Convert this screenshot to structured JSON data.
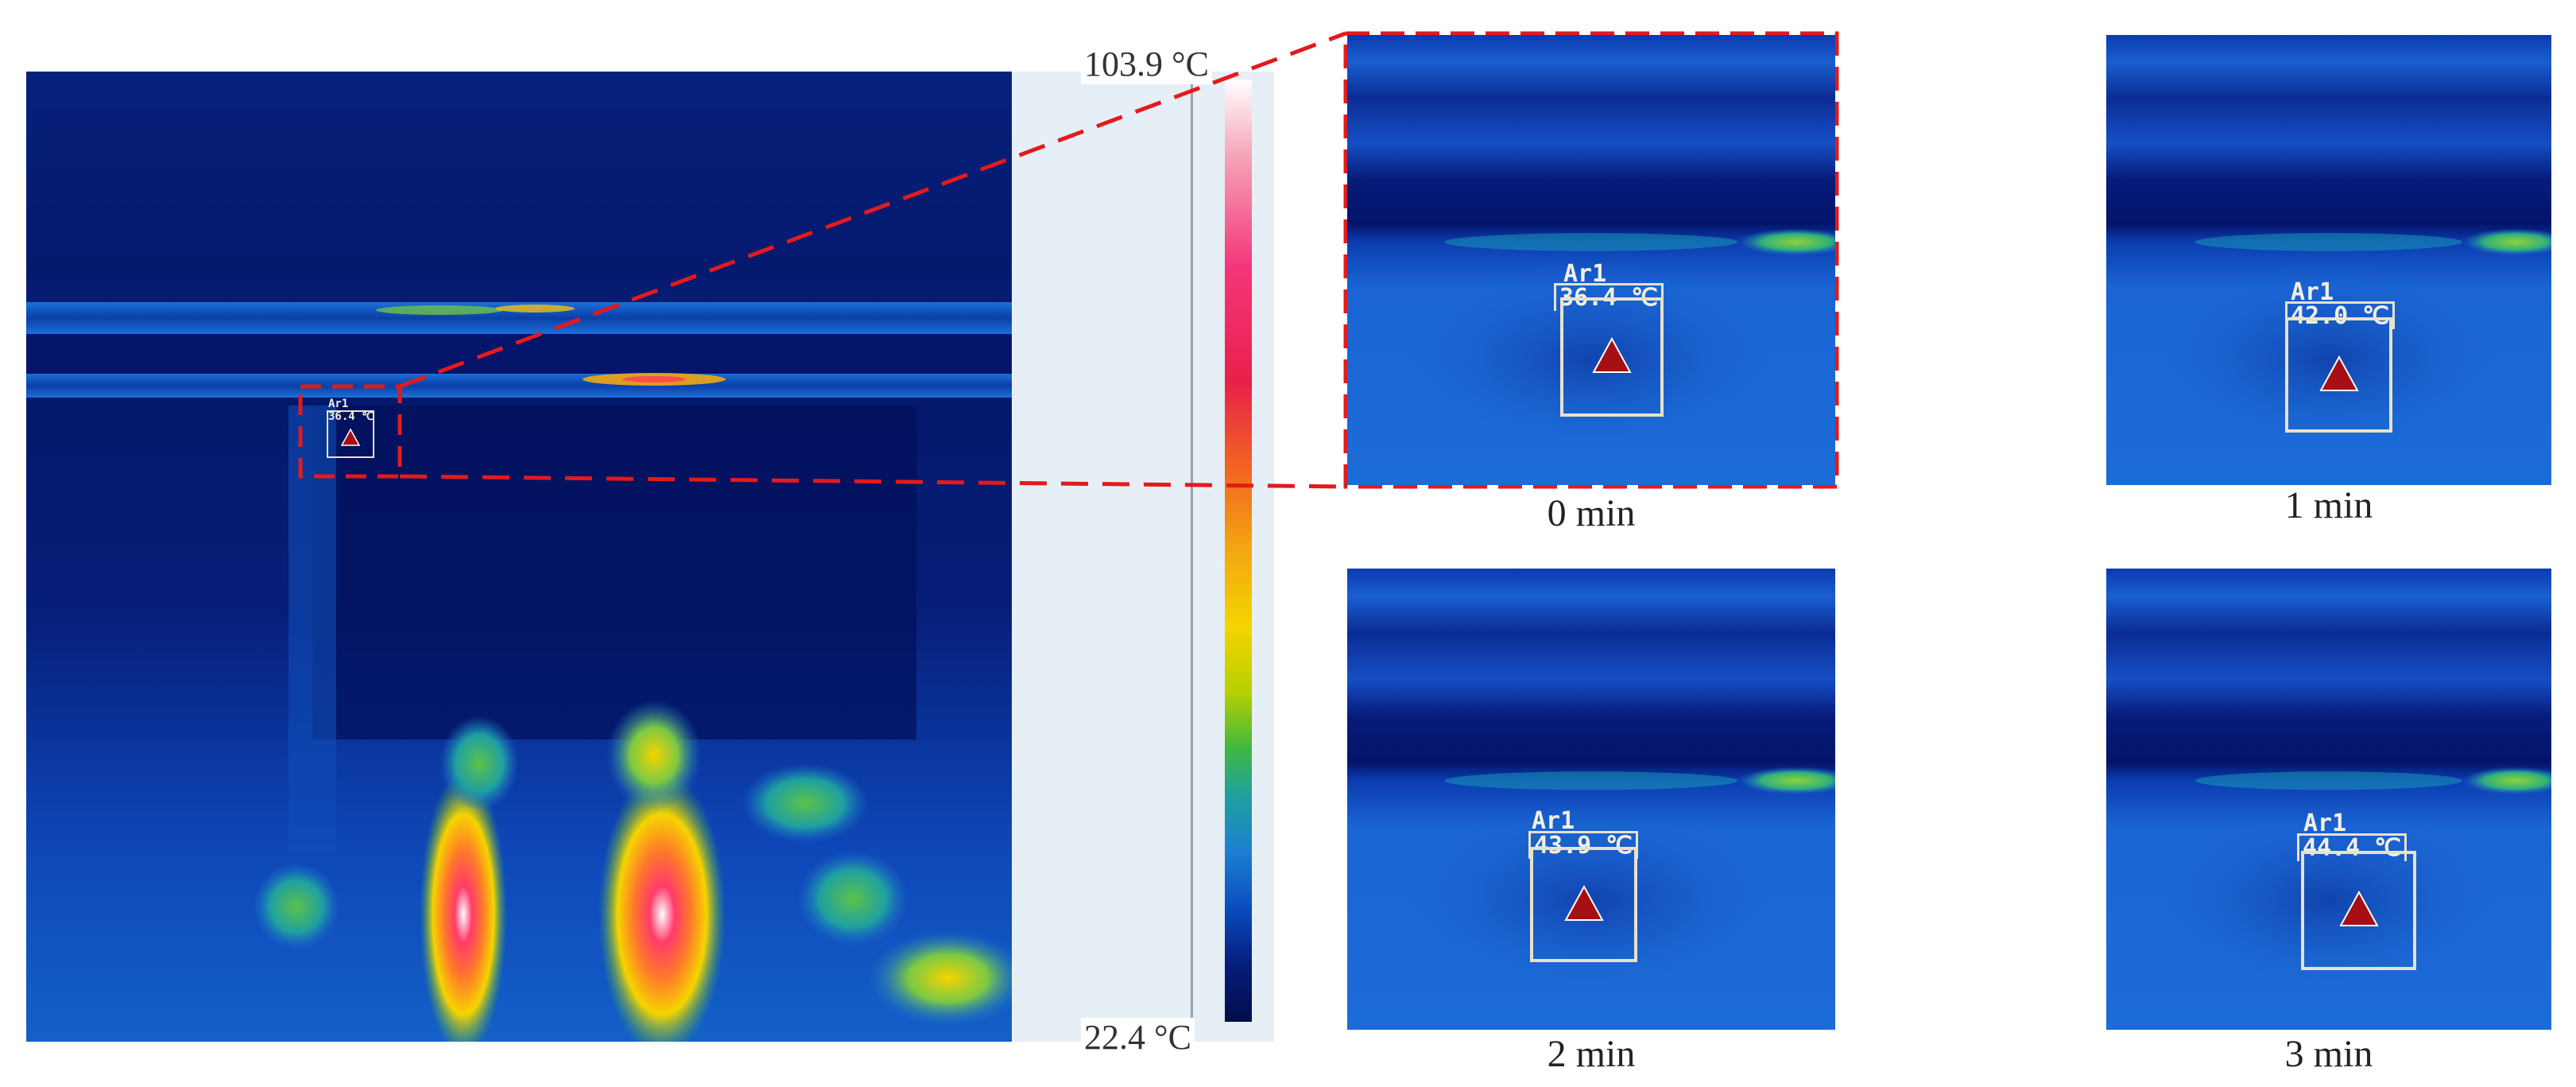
{
  "scale": {
    "max_label": "103.9 °C",
    "min_label": "22.4 °C",
    "max_value": 103.9,
    "min_value": 22.4,
    "unit": "°C"
  },
  "overview": {
    "area_label": "Ar1",
    "temp_label": "36.4 ℃"
  },
  "panels": [
    {
      "area_label": "Ar1",
      "temp_label": "36.4 ℃",
      "temp_value": 36.4,
      "time_label": "0 min"
    },
    {
      "area_label": "Ar1",
      "temp_label": "42.0 ℃",
      "temp_value": 42.0,
      "time_label": "1 min"
    },
    {
      "area_label": "Ar1",
      "temp_label": "43.9 ℃",
      "temp_value": 43.9,
      "time_label": "2 min"
    },
    {
      "area_label": "Ar1",
      "temp_label": "44.4 ℃",
      "temp_value": 44.4,
      "time_label": "3 min"
    }
  ],
  "colors": {
    "zoom_frame": "#e31a1c",
    "marker": "#a50f15",
    "box": "#e8e2c8",
    "scale_bg": "#e6eff6"
  }
}
